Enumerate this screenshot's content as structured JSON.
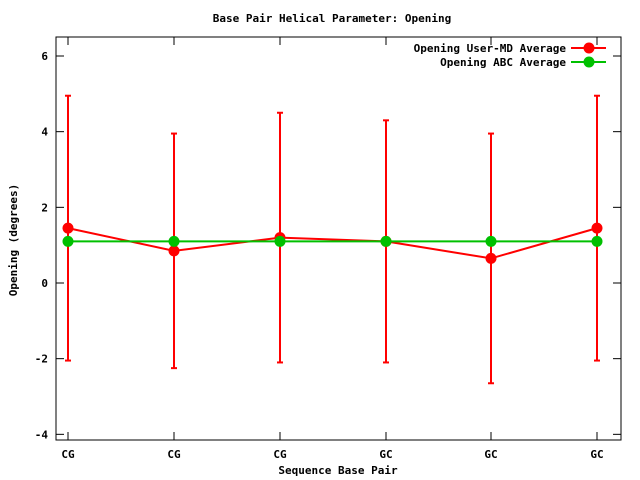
{
  "chart_data": {
    "type": "line",
    "title": "Base Pair Helical Parameter: Opening",
    "xlabel": "Sequence Base Pair",
    "ylabel": "Opening (degrees)",
    "categories": [
      "CG",
      "CG",
      "CG",
      "GC",
      "GC",
      "GC"
    ],
    "ylim": [
      -4.2,
      6.5
    ],
    "yticks": [
      -4,
      -2,
      0,
      2,
      4,
      6
    ],
    "grid": false,
    "legend_position": "top-right",
    "series": [
      {
        "name": "Opening User-MD Average",
        "color": "#ff0000",
        "values": [
          1.45,
          0.85,
          1.2,
          1.1,
          0.65,
          1.45
        ],
        "error_low": [
          -2.05,
          -2.25,
          -2.1,
          -2.1,
          -2.65,
          -2.05
        ],
        "error_high": [
          4.95,
          3.95,
          4.5,
          4.3,
          3.95,
          4.95
        ]
      },
      {
        "name": "Opening ABC Average",
        "color": "#00c000",
        "values": [
          1.1,
          1.1,
          1.1,
          1.1,
          1.1,
          1.1
        ]
      }
    ]
  }
}
